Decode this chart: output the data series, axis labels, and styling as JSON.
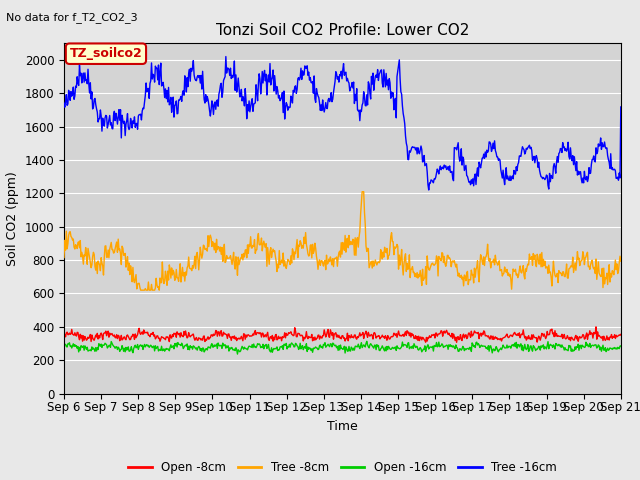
{
  "title": "Tonzi Soil CO2 Profile: Lower CO2",
  "subtitle": "No data for f_T2_CO2_3",
  "xlabel": "Time",
  "ylabel": "Soil CO2 (ppm)",
  "ylim": [
    0,
    2100
  ],
  "background_color": "#e8e8e8",
  "plot_bg_color": "#d4d4d4",
  "legend_items": [
    "Open -8cm",
    "Tree -8cm",
    "Open -16cm",
    "Tree -16cm"
  ],
  "legend_colors": [
    "#ff0000",
    "#ffa500",
    "#00cc00",
    "#0000ff"
  ],
  "inset_label": "TZ_soilco2",
  "inset_color": "#cc0000",
  "inset_bg": "#ffffcc",
  "x_tick_labels": [
    "Sep 6",
    "Sep 7",
    "Sep 8",
    "Sep 9",
    "Sep 10",
    "Sep 11",
    "Sep 12",
    "Sep 13",
    "Sep 14",
    "Sep 15",
    "Sep 16",
    "Sep 17",
    "Sep 18",
    "Sep 19",
    "Sep 20",
    "Sep 21"
  ],
  "ytick_values": [
    0,
    200,
    400,
    600,
    800,
    1000,
    1200,
    1400,
    1600,
    1800,
    2000
  ]
}
